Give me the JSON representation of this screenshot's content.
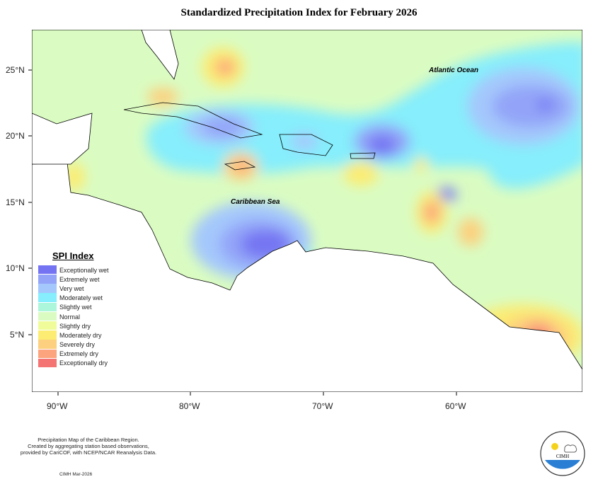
{
  "title": "Standardized Precipitation Index for February 2026",
  "x_ticks": [
    "90°W",
    "80°W",
    "70°W",
    "60°W"
  ],
  "y_ticks": [
    "25°N",
    "20°N",
    "15°N",
    "10°N",
    "5°N"
  ],
  "map_labels": {
    "atlantic": "Atlantic Ocean",
    "caribbean": "Caribbean Sea"
  },
  "legend": {
    "title": "SPI Index",
    "items": [
      {
        "label": "Exceptionally wet",
        "color": "#7474f2"
      },
      {
        "label": "Extremely wet",
        "color": "#93a4f8"
      },
      {
        "label": "Very wet",
        "color": "#a4c8fc"
      },
      {
        "label": "Moderately wet",
        "color": "#86eefc"
      },
      {
        "label": "Slightly wet",
        "color": "#acf6dc"
      },
      {
        "label": "Normal",
        "color": "#dafcc2"
      },
      {
        "label": "Slightly dry",
        "color": "#f0fc9a"
      },
      {
        "label": "Moderately dry",
        "color": "#fcec72"
      },
      {
        "label": "Severely dry",
        "color": "#fcd07e"
      },
      {
        "label": "Extremely dry",
        "color": "#fca47e"
      },
      {
        "label": "Exceptionally dry",
        "color": "#f47474"
      }
    ]
  },
  "credit": {
    "line1": "Precipitation Map of the Caribbean Region.",
    "line2": "Created by aggregating station based observations,",
    "line3": "provided by CariCOF, with NCEP/NCAR Reanalysis Data.",
    "date": "CIMH Mar-2026"
  },
  "logo_text": "CIMH"
}
